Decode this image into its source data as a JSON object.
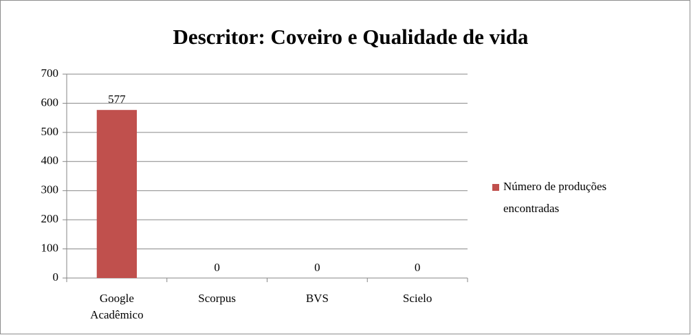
{
  "chart_data": {
    "type": "bar",
    "title": "Descritor: Coveiro e Qualidade de vida",
    "categories": [
      "Google Acadêmico",
      "Scorpus",
      "BVS",
      "Scielo"
    ],
    "series": [
      {
        "name": "Número de produções encontradas",
        "color": "#c0504d",
        "values": [
          577,
          0,
          0,
          0
        ]
      }
    ],
    "ylim": [
      0,
      700
    ],
    "yticks": [
      0,
      100,
      200,
      300,
      400,
      500,
      600,
      700
    ],
    "grid": true,
    "legend": "right"
  }
}
